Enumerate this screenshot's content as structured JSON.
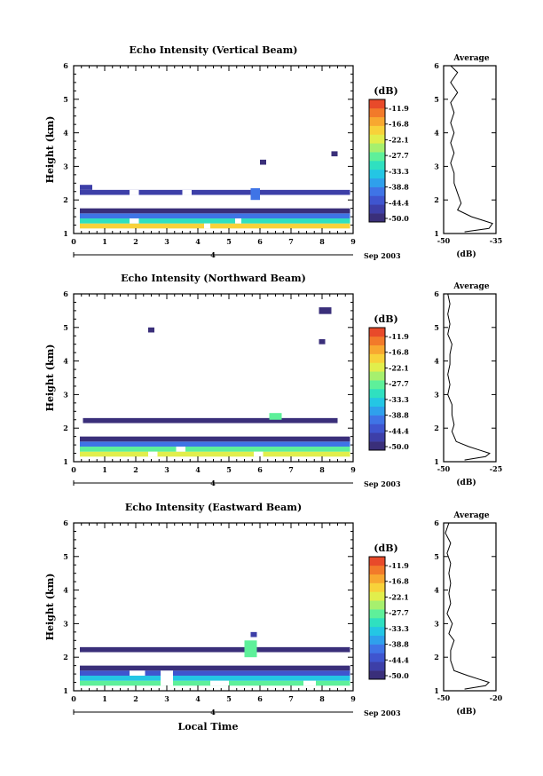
{
  "chart_data": [
    {
      "type": "heatmap",
      "title": "Echo Intensity (Vertical Beam)",
      "ylabel": "Height (km)",
      "x_ticks": [
        "0",
        "1",
        "2",
        "3",
        "4",
        "5",
        "6",
        "7",
        "8",
        "9"
      ],
      "y_ticks": [
        "1",
        "2",
        "3",
        "4",
        "5",
        "6"
      ],
      "xlim": [
        0,
        9
      ],
      "ylim": [
        1,
        6
      ],
      "date_marker": "4",
      "date_label": "Sep 2003",
      "colorbar": {
        "unit": "(dB)",
        "ticks": [
          "-11.9",
          "-16.8",
          "-22.1",
          "-27.7",
          "-33.3",
          "-38.8",
          "-44.4",
          "-50.0"
        ],
        "range": [
          -50,
          -10
        ]
      },
      "cells": [
        {
          "x0": 0.2,
          "x1": 8.9,
          "y0": 1.15,
          "y1": 1.3,
          "v": -20
        },
        {
          "x0": 0.2,
          "x1": 8.9,
          "y0": 1.3,
          "y1": 1.45,
          "v": -32
        },
        {
          "x0": 0.2,
          "x1": 8.9,
          "y0": 1.45,
          "y1": 1.6,
          "v": -40
        },
        {
          "x0": 0.2,
          "x1": 8.9,
          "y0": 1.6,
          "y1": 1.75,
          "v": -48
        },
        {
          "x0": 0.2,
          "x1": 8.9,
          "y0": 2.15,
          "y1": 2.3,
          "v": -47
        },
        {
          "x0": 0.2,
          "x1": 0.6,
          "y0": 2.3,
          "y1": 2.45,
          "v": -47
        },
        {
          "x0": 5.7,
          "x1": 6.0,
          "y0": 2.0,
          "y1": 2.35,
          "v": -40
        },
        {
          "x0": 8.3,
          "x1": 8.5,
          "y0": 3.3,
          "y1": 3.45,
          "v": -48
        },
        {
          "x0": 6.0,
          "x1": 6.2,
          "y0": 3.05,
          "y1": 3.2,
          "v": -48
        }
      ],
      "holes": [
        {
          "x0": 1.8,
          "x1": 2.1,
          "y0": 2.15,
          "y1": 2.3
        },
        {
          "x0": 3.5,
          "x1": 3.8,
          "y0": 2.15,
          "y1": 2.3
        },
        {
          "x0": 1.8,
          "x1": 2.1,
          "y0": 1.3,
          "y1": 1.45
        },
        {
          "x0": 4.2,
          "x1": 4.4,
          "y0": 1.15,
          "y1": 1.3
        },
        {
          "x0": 5.2,
          "x1": 5.4,
          "y0": 1.3,
          "y1": 1.45
        }
      ],
      "profile": {
        "title": "Average",
        "xlabel": "(dB)",
        "x_ticks": [
          "-50",
          "-35"
        ],
        "xlim": [
          -50,
          -35
        ],
        "points": [
          [
            -48,
            6.0
          ],
          [
            -46,
            5.8
          ],
          [
            -48,
            5.5
          ],
          [
            -46,
            5.2
          ],
          [
            -48,
            4.9
          ],
          [
            -47,
            4.6
          ],
          [
            -48,
            4.3
          ],
          [
            -47,
            4.0
          ],
          [
            -48,
            3.7
          ],
          [
            -47,
            3.4
          ],
          [
            -48,
            3.1
          ],
          [
            -47,
            2.8
          ],
          [
            -47,
            2.5
          ],
          [
            -46,
            2.2
          ],
          [
            -45,
            1.9
          ],
          [
            -46,
            1.7
          ],
          [
            -42,
            1.5
          ],
          [
            -39,
            1.4
          ],
          [
            -36,
            1.3
          ],
          [
            -37,
            1.15
          ],
          [
            -44,
            1.05
          ]
        ]
      }
    },
    {
      "type": "heatmap",
      "title": "Echo Intensity (Northward Beam)",
      "ylabel": "Height (km)",
      "x_ticks": [
        "0",
        "1",
        "2",
        "3",
        "4",
        "5",
        "6",
        "7",
        "8",
        "9"
      ],
      "y_ticks": [
        "1",
        "2",
        "3",
        "4",
        "5",
        "6"
      ],
      "xlim": [
        0,
        9
      ],
      "ylim": [
        1,
        6
      ],
      "date_marker": "4",
      "date_label": "Sep 2003",
      "colorbar": {
        "unit": "(dB)",
        "ticks": [
          "-11.9",
          "-16.8",
          "-22.1",
          "-27.7",
          "-33.3",
          "-38.8",
          "-44.4",
          "-50.0"
        ],
        "range": [
          -50,
          -10
        ]
      },
      "cells": [
        {
          "x0": 0.2,
          "x1": 8.9,
          "y0": 1.15,
          "y1": 1.3,
          "v": -22
        },
        {
          "x0": 0.2,
          "x1": 8.9,
          "y0": 1.3,
          "y1": 1.45,
          "v": -30
        },
        {
          "x0": 0.2,
          "x1": 8.9,
          "y0": 1.45,
          "y1": 1.6,
          "v": -40
        },
        {
          "x0": 0.2,
          "x1": 8.9,
          "y0": 1.6,
          "y1": 1.75,
          "v": -48
        },
        {
          "x0": 0.3,
          "x1": 8.5,
          "y0": 2.15,
          "y1": 2.3,
          "v": -48
        },
        {
          "x0": 6.3,
          "x1": 6.7,
          "y0": 2.25,
          "y1": 2.45,
          "v": -30
        },
        {
          "x0": 2.4,
          "x1": 2.6,
          "y0": 4.85,
          "y1": 5.0,
          "v": -48
        },
        {
          "x0": 7.9,
          "x1": 8.3,
          "y0": 5.4,
          "y1": 5.6,
          "v": -48
        },
        {
          "x0": 7.9,
          "x1": 8.1,
          "y0": 4.5,
          "y1": 4.65,
          "v": -48
        }
      ],
      "holes": [
        {
          "x0": 2.4,
          "x1": 2.7,
          "y0": 1.15,
          "y1": 1.3
        },
        {
          "x0": 5.8,
          "x1": 6.1,
          "y0": 1.15,
          "y1": 1.3
        },
        {
          "x0": 3.3,
          "x1": 3.6,
          "y0": 1.3,
          "y1": 1.45
        }
      ],
      "profile": {
        "title": "Average",
        "xlabel": "(dB)",
        "x_ticks": [
          "-50",
          "-25"
        ],
        "xlim": [
          -50,
          -25
        ],
        "points": [
          [
            -48,
            6.0
          ],
          [
            -47,
            5.7
          ],
          [
            -48,
            5.4
          ],
          [
            -47,
            5.1
          ],
          [
            -48,
            4.8
          ],
          [
            -46,
            4.5
          ],
          [
            -47,
            4.2
          ],
          [
            -47,
            3.9
          ],
          [
            -48,
            3.6
          ],
          [
            -47,
            3.3
          ],
          [
            -48,
            3.0
          ],
          [
            -46,
            2.7
          ],
          [
            -46,
            2.4
          ],
          [
            -45,
            2.1
          ],
          [
            -46,
            1.9
          ],
          [
            -44,
            1.6
          ],
          [
            -38,
            1.45
          ],
          [
            -33,
            1.35
          ],
          [
            -28,
            1.25
          ],
          [
            -30,
            1.15
          ],
          [
            -40,
            1.05
          ]
        ]
      }
    },
    {
      "type": "heatmap",
      "title": "Echo Intensity (Eastward Beam)",
      "ylabel": "Height (km)",
      "xlabel": "Local Time",
      "x_ticks": [
        "0",
        "1",
        "2",
        "3",
        "4",
        "5",
        "6",
        "7",
        "8",
        "9"
      ],
      "y_ticks": [
        "1",
        "2",
        "3",
        "4",
        "5",
        "6"
      ],
      "xlim": [
        0,
        9
      ],
      "ylim": [
        1,
        6
      ],
      "date_marker": "4",
      "date_label": "Sep 2003",
      "colorbar": {
        "unit": "(dB)",
        "ticks": [
          "-11.9",
          "-16.8",
          "-22.1",
          "-27.7",
          "-33.3",
          "-38.8",
          "-44.4",
          "-50.0"
        ],
        "range": [
          -50,
          -10
        ]
      },
      "cells": [
        {
          "x0": 0.2,
          "x1": 8.9,
          "y0": 1.15,
          "y1": 1.3,
          "v": -28
        },
        {
          "x0": 0.2,
          "x1": 8.9,
          "y0": 1.3,
          "y1": 1.45,
          "v": -34
        },
        {
          "x0": 0.2,
          "x1": 8.9,
          "y0": 1.45,
          "y1": 1.6,
          "v": -44
        },
        {
          "x0": 0.2,
          "x1": 8.9,
          "y0": 1.6,
          "y1": 1.75,
          "v": -48
        },
        {
          "x0": 0.2,
          "x1": 8.9,
          "y0": 2.15,
          "y1": 2.3,
          "v": -48
        },
        {
          "x0": 5.5,
          "x1": 5.9,
          "y0": 2.0,
          "y1": 2.5,
          "v": -30
        },
        {
          "x0": 5.7,
          "x1": 5.9,
          "y0": 2.6,
          "y1": 2.75,
          "v": -46
        }
      ],
      "holes": [
        {
          "x0": 2.8,
          "x1": 3.2,
          "y0": 1.15,
          "y1": 1.6
        },
        {
          "x0": 4.4,
          "x1": 5.0,
          "y0": 1.15,
          "y1": 1.3
        },
        {
          "x0": 7.4,
          "x1": 7.8,
          "y0": 1.15,
          "y1": 1.3
        },
        {
          "x0": 1.8,
          "x1": 2.3,
          "y0": 1.45,
          "y1": 1.6
        }
      ],
      "profile": {
        "title": "Average",
        "xlabel": "(dB)",
        "x_ticks": [
          "-50",
          "-20"
        ],
        "xlim": [
          -50,
          -20
        ],
        "points": [
          [
            -47,
            6.0
          ],
          [
            -49,
            5.7
          ],
          [
            -46,
            5.4
          ],
          [
            -48,
            5.1
          ],
          [
            -46,
            4.8
          ],
          [
            -47,
            4.5
          ],
          [
            -46,
            4.2
          ],
          [
            -47,
            3.9
          ],
          [
            -46,
            3.6
          ],
          [
            -48,
            3.3
          ],
          [
            -45,
            3.0
          ],
          [
            -47,
            2.7
          ],
          [
            -44,
            2.5
          ],
          [
            -46,
            2.2
          ],
          [
            -46,
            1.9
          ],
          [
            -44,
            1.6
          ],
          [
            -36,
            1.45
          ],
          [
            -30,
            1.35
          ],
          [
            -24,
            1.25
          ],
          [
            -26,
            1.15
          ],
          [
            -38,
            1.05
          ]
        ]
      }
    }
  ]
}
